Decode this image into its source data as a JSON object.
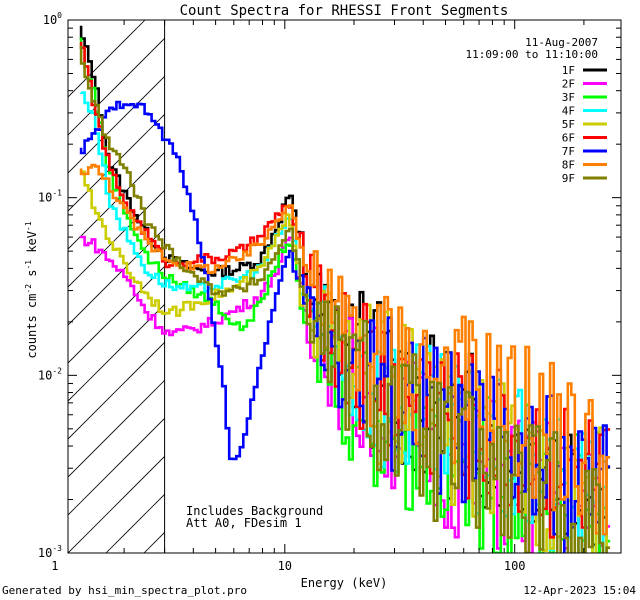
{
  "chart_data": {
    "type": "line",
    "scale": "log-log",
    "title": "Count Spectra for RHESSI Front Segments",
    "xlabel": "Energy (keV)",
    "ylabel": "counts cm-2 s-1 keV-1",
    "xlim": [
      1.14,
      290
    ],
    "ylim": [
      0.001,
      1.0
    ],
    "x_ticks": [
      {
        "value": 1,
        "label": "1"
      },
      {
        "value": 10,
        "label": "10"
      },
      {
        "value": 100,
        "label": "100"
      }
    ],
    "y_ticks": [
      {
        "value": 0.001,
        "label": "10",
        "exp": "-3"
      },
      {
        "value": 0.01,
        "label": "10",
        "exp": "-2"
      },
      {
        "value": 0.1,
        "label": "10",
        "exp": "-1"
      },
      {
        "value": 1,
        "label": "10",
        "exp": "0"
      }
    ],
    "attenuator_edge_keV": 3.0,
    "date": "11-Aug-2007",
    "time_range": "11:09:00 to 11:10:00",
    "note_lines": [
      "Includes Background",
      "Att A0, FDesim 1"
    ],
    "series": [
      {
        "name": "1F",
        "color": "#000000",
        "points": [
          [
            1.3,
            0.9
          ],
          [
            1.5,
            0.5
          ],
          [
            1.75,
            0.16
          ],
          [
            2.1,
            0.1
          ],
          [
            2.6,
            0.06
          ],
          [
            3.2,
            0.045
          ],
          [
            4.0,
            0.04
          ],
          [
            5.0,
            0.038
          ],
          [
            6.5,
            0.04
          ],
          [
            8,
            0.045
          ],
          [
            9.5,
            0.07
          ],
          [
            10.7,
            0.11
          ],
          [
            12,
            0.05
          ],
          [
            14,
            0.025
          ],
          [
            17,
            0.018
          ],
          [
            22,
            0.012
          ],
          [
            30,
            0.009
          ],
          [
            45,
            0.006
          ],
          [
            70,
            0.005
          ],
          [
            110,
            0.004
          ],
          [
            170,
            0.003
          ],
          [
            260,
            0.002
          ]
        ]
      },
      {
        "name": "2F",
        "color": "#ff00ff",
        "points": [
          [
            1.3,
            0.06
          ],
          [
            1.5,
            0.055
          ],
          [
            1.75,
            0.045
          ],
          [
            2.1,
            0.035
          ],
          [
            2.6,
            0.022
          ],
          [
            3.2,
            0.017
          ],
          [
            4.0,
            0.018
          ],
          [
            5.0,
            0.02
          ],
          [
            6.5,
            0.024
          ],
          [
            8,
            0.028
          ],
          [
            9.5,
            0.04
          ],
          [
            10.7,
            0.06
          ],
          [
            12,
            0.03
          ],
          [
            14,
            0.017
          ],
          [
            17,
            0.012
          ],
          [
            22,
            0.008
          ],
          [
            30,
            0.006
          ],
          [
            45,
            0.004
          ],
          [
            70,
            0.003
          ],
          [
            110,
            0.0025
          ],
          [
            170,
            0.0018
          ],
          [
            260,
            0.0013
          ]
        ]
      },
      {
        "name": "3F",
        "color": "#00ff00",
        "points": [
          [
            1.3,
            0.8
          ],
          [
            1.5,
            0.4
          ],
          [
            1.75,
            0.14
          ],
          [
            2.1,
            0.08
          ],
          [
            2.6,
            0.045
          ],
          [
            3.2,
            0.035
          ],
          [
            4.0,
            0.03
          ],
          [
            5.0,
            0.026
          ],
          [
            6.5,
            0.018
          ],
          [
            8,
            0.025
          ],
          [
            9.5,
            0.045
          ],
          [
            10.7,
            0.06
          ],
          [
            12,
            0.025
          ],
          [
            14,
            0.015
          ],
          [
            17,
            0.01
          ],
          [
            22,
            0.007
          ],
          [
            30,
            0.005
          ],
          [
            45,
            0.004
          ],
          [
            70,
            0.003
          ],
          [
            110,
            0.0025
          ],
          [
            170,
            0.002
          ],
          [
            260,
            0.0015
          ]
        ]
      },
      {
        "name": "4F",
        "color": "#00ffff",
        "points": [
          [
            1.3,
            0.4
          ],
          [
            1.5,
            0.3
          ],
          [
            1.75,
            0.1
          ],
          [
            2.1,
            0.06
          ],
          [
            2.6,
            0.038
          ],
          [
            3.2,
            0.032
          ],
          [
            4.0,
            0.03
          ],
          [
            5.0,
            0.032
          ],
          [
            6.5,
            0.035
          ],
          [
            8,
            0.04
          ],
          [
            9.5,
            0.06
          ],
          [
            10.7,
            0.08
          ],
          [
            12,
            0.035
          ],
          [
            14,
            0.02
          ],
          [
            17,
            0.014
          ],
          [
            22,
            0.01
          ],
          [
            30,
            0.007
          ],
          [
            45,
            0.005
          ],
          [
            70,
            0.004
          ],
          [
            110,
            0.003
          ],
          [
            170,
            0.0022
          ],
          [
            260,
            0.0016
          ]
        ]
      },
      {
        "name": "5F",
        "color": "#cccc00",
        "points": [
          [
            1.3,
            0.15
          ],
          [
            1.5,
            0.09
          ],
          [
            1.75,
            0.06
          ],
          [
            2.1,
            0.04
          ],
          [
            2.6,
            0.028
          ],
          [
            3.2,
            0.022
          ],
          [
            4.0,
            0.025
          ],
          [
            5.0,
            0.028
          ],
          [
            6.5,
            0.032
          ],
          [
            8,
            0.04
          ],
          [
            9.5,
            0.06
          ],
          [
            10.7,
            0.08
          ],
          [
            12,
            0.035
          ],
          [
            14,
            0.02
          ],
          [
            17,
            0.014
          ],
          [
            22,
            0.01
          ],
          [
            30,
            0.008
          ],
          [
            45,
            0.006
          ],
          [
            70,
            0.004
          ],
          [
            110,
            0.003
          ],
          [
            170,
            0.0025
          ],
          [
            260,
            0.0018
          ]
        ]
      },
      {
        "name": "6F",
        "color": "#ff0000",
        "points": [
          [
            1.3,
            0.8
          ],
          [
            1.5,
            0.35
          ],
          [
            1.75,
            0.15
          ],
          [
            2.1,
            0.09
          ],
          [
            2.6,
            0.06
          ],
          [
            3.2,
            0.042
          ],
          [
            4.0,
            0.045
          ],
          [
            5.0,
            0.045
          ],
          [
            6.5,
            0.05
          ],
          [
            8,
            0.06
          ],
          [
            9.5,
            0.08
          ],
          [
            10.7,
            0.095
          ],
          [
            12,
            0.045
          ],
          [
            14,
            0.025
          ],
          [
            17,
            0.016
          ],
          [
            22,
            0.012
          ],
          [
            30,
            0.009
          ],
          [
            45,
            0.007
          ],
          [
            70,
            0.005
          ],
          [
            110,
            0.004
          ],
          [
            170,
            0.003
          ],
          [
            260,
            0.0022
          ]
        ]
      },
      {
        "name": "7F",
        "color": "#0000ff",
        "points": [
          [
            1.3,
            0.18
          ],
          [
            1.5,
            0.22
          ],
          [
            1.75,
            0.3
          ],
          [
            2.1,
            0.36
          ],
          [
            2.6,
            0.3
          ],
          [
            3.2,
            0.2
          ],
          [
            3.6,
            0.15
          ],
          [
            4.0,
            0.09
          ],
          [
            4.5,
            0.045
          ],
          [
            5.0,
            0.02
          ],
          [
            5.5,
            0.009
          ],
          [
            6.0,
            0.003
          ],
          [
            7.0,
            0.005
          ],
          [
            8,
            0.012
          ],
          [
            9.5,
            0.03
          ],
          [
            10.7,
            0.05
          ],
          [
            12,
            0.03
          ],
          [
            14,
            0.02
          ],
          [
            17,
            0.014
          ],
          [
            22,
            0.01
          ],
          [
            30,
            0.008
          ],
          [
            45,
            0.006
          ],
          [
            70,
            0.0045
          ],
          [
            110,
            0.0035
          ],
          [
            170,
            0.0025
          ],
          [
            260,
            0.0019
          ]
        ]
      },
      {
        "name": "8F",
        "color": "#ff8000",
        "points": [
          [
            1.3,
            0.14
          ],
          [
            1.5,
            0.15
          ],
          [
            1.75,
            0.12
          ],
          [
            2.1,
            0.08
          ],
          [
            2.6,
            0.055
          ],
          [
            3.2,
            0.045
          ],
          [
            4.0,
            0.04
          ],
          [
            5.0,
            0.04
          ],
          [
            6.5,
            0.045
          ],
          [
            8,
            0.055
          ],
          [
            9.5,
            0.075
          ],
          [
            10.7,
            0.1
          ],
          [
            12,
            0.05
          ],
          [
            14,
            0.03
          ],
          [
            17,
            0.02
          ],
          [
            22,
            0.015
          ],
          [
            30,
            0.012
          ],
          [
            45,
            0.01
          ],
          [
            70,
            0.008
          ],
          [
            110,
            0.006
          ],
          [
            170,
            0.004
          ],
          [
            260,
            0.003
          ]
        ]
      },
      {
        "name": "9F",
        "color": "#808000",
        "points": [
          [
            1.3,
            0.7
          ],
          [
            1.5,
            0.35
          ],
          [
            1.75,
            0.2
          ],
          [
            2.1,
            0.14
          ],
          [
            2.6,
            0.07
          ],
          [
            3.2,
            0.05
          ],
          [
            4.0,
            0.038
          ],
          [
            5.0,
            0.03
          ],
          [
            6.5,
            0.03
          ],
          [
            8,
            0.035
          ],
          [
            9.5,
            0.05
          ],
          [
            10.7,
            0.07
          ],
          [
            12,
            0.035
          ],
          [
            14,
            0.018
          ],
          [
            17,
            0.012
          ],
          [
            22,
            0.009
          ],
          [
            30,
            0.006
          ],
          [
            45,
            0.004
          ],
          [
            70,
            0.003
          ],
          [
            110,
            0.0022
          ],
          [
            170,
            0.0017
          ],
          [
            260,
            0.0013
          ]
        ]
      }
    ]
  },
  "footer": {
    "generated_by": "Generated by hsi_min_spectra_plot.pro",
    "timestamp": "12-Apr-2023 15:04"
  }
}
